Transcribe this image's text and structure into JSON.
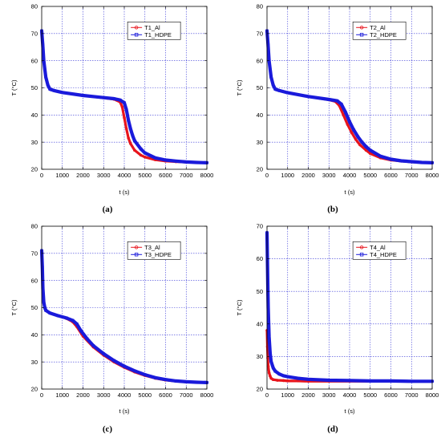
{
  "colors": {
    "al": "#e8141c",
    "hdpe": "#1a1adb",
    "grid": "#3a3ad8",
    "frame": "#000000"
  },
  "chart_data": [
    {
      "type": "line",
      "panel_label": "(a)",
      "xlabel": "t (s)",
      "ylabel": "T (°C)",
      "xlim": [
        0,
        8000
      ],
      "ylim": [
        20,
        80
      ],
      "xticks": [
        0,
        1000,
        2000,
        3000,
        4000,
        5000,
        6000,
        7000,
        8000
      ],
      "yticks": [
        20,
        30,
        40,
        50,
        60,
        70,
        80
      ],
      "grid": true,
      "legend_position": "top-right",
      "series": [
        {
          "name": "T1_Al",
          "color": "#e8141c",
          "marker": "circle",
          "x": [
            0,
            50,
            100,
            200,
            300,
            400,
            600,
            1000,
            2000,
            3000,
            3500,
            3800,
            3900,
            4000,
            4100,
            4200,
            4300,
            4500,
            4800,
            5000,
            5500,
            6000,
            6500,
            7000,
            7500,
            8000
          ],
          "y": [
            71,
            66,
            60,
            54,
            51,
            49.5,
            49,
            48.3,
            47.2,
            46.3,
            45.8,
            44.8,
            43,
            39,
            35,
            31.5,
            29.5,
            27,
            25.2,
            24.5,
            23.5,
            23,
            22.8,
            22.6,
            22.5,
            22.4
          ]
        },
        {
          "name": "T1_HDPE",
          "color": "#1a1adb",
          "marker": "square",
          "x": [
            0,
            50,
            100,
            200,
            300,
            400,
            600,
            1000,
            2000,
            3000,
            3500,
            3800,
            4000,
            4100,
            4200,
            4300,
            4400,
            4500,
            4800,
            5000,
            5500,
            6000,
            6500,
            7000,
            7500,
            8000
          ],
          "y": [
            71,
            66,
            60,
            54,
            51,
            49.5,
            49,
            48.3,
            47.2,
            46.4,
            46,
            45.5,
            44.5,
            42,
            38,
            35,
            32.5,
            30.5,
            27.5,
            26,
            24.2,
            23.4,
            23,
            22.7,
            22.5,
            22.4
          ]
        }
      ]
    },
    {
      "type": "line",
      "panel_label": "(b)",
      "xlabel": "t (s)",
      "ylabel": "T (°C)",
      "xlim": [
        0,
        8000
      ],
      "ylim": [
        20,
        80
      ],
      "xticks": [
        0,
        1000,
        2000,
        3000,
        4000,
        5000,
        6000,
        7000,
        8000
      ],
      "yticks": [
        20,
        30,
        40,
        50,
        60,
        70,
        80
      ],
      "grid": true,
      "legend_position": "top-right",
      "series": [
        {
          "name": "T2_Al",
          "color": "#e8141c",
          "marker": "circle",
          "x": [
            0,
            50,
            100,
            200,
            300,
            400,
            600,
            1000,
            2000,
            3000,
            3300,
            3500,
            3700,
            3900,
            4100,
            4300,
            4500,
            4800,
            5000,
            5500,
            6000,
            6500,
            7000,
            7500,
            8000
          ],
          "y": [
            71,
            66,
            60,
            54,
            51,
            49.5,
            49,
            48.2,
            46.8,
            45.6,
            45,
            43.5,
            40,
            36.5,
            33.5,
            31,
            29,
            27,
            25.8,
            24.2,
            23.4,
            23,
            22.7,
            22.5,
            22.4
          ]
        },
        {
          "name": "T2_HDPE",
          "color": "#1a1adb",
          "marker": "square",
          "x": [
            0,
            50,
            100,
            200,
            300,
            400,
            600,
            1000,
            2000,
            3000,
            3400,
            3600,
            3800,
            4000,
            4200,
            4400,
            4600,
            4800,
            5000,
            5500,
            6000,
            6500,
            7000,
            7500,
            8000
          ],
          "y": [
            71,
            66,
            60,
            54,
            51,
            49.5,
            49,
            48.2,
            46.8,
            45.7,
            45.2,
            44,
            41,
            37.5,
            34.5,
            32,
            30,
            28.3,
            27,
            24.8,
            23.7,
            23.1,
            22.8,
            22.5,
            22.4
          ]
        }
      ]
    },
    {
      "type": "line",
      "panel_label": "(c)",
      "xlabel": "t (s)",
      "ylabel": "T (°C)",
      "xlim": [
        0,
        8000
      ],
      "ylim": [
        20,
        80
      ],
      "xticks": [
        0,
        1000,
        2000,
        3000,
        4000,
        5000,
        6000,
        7000,
        8000
      ],
      "yticks": [
        20,
        30,
        40,
        50,
        60,
        70,
        80
      ],
      "grid": true,
      "legend_position": "top-right",
      "series": [
        {
          "name": "T3_Al",
          "color": "#e8141c",
          "marker": "circle",
          "x": [
            0,
            30,
            60,
            100,
            150,
            200,
            400,
            800,
            1200,
            1500,
            1700,
            2000,
            2500,
            3000,
            3500,
            4000,
            4500,
            5000,
            5500,
            6000,
            6500,
            7000,
            7500,
            8000
          ],
          "y": [
            71,
            65,
            57,
            52,
            50,
            49,
            48,
            47,
            46,
            44.8,
            43,
            39.5,
            35.5,
            32.5,
            30,
            28,
            26.3,
            25,
            24,
            23.3,
            22.9,
            22.6,
            22.5,
            22.4
          ]
        },
        {
          "name": "T3_HDPE",
          "color": "#1a1adb",
          "marker": "square",
          "x": [
            0,
            30,
            60,
            100,
            150,
            200,
            400,
            800,
            1200,
            1500,
            1700,
            1900,
            2200,
            2500,
            3000,
            3500,
            4000,
            4500,
            5000,
            5500,
            6000,
            6500,
            7000,
            7500,
            8000
          ],
          "y": [
            71,
            65,
            57,
            52,
            50,
            49,
            48,
            47,
            46.2,
            45.3,
            44,
            41.5,
            38.5,
            36,
            33,
            30.5,
            28.4,
            26.7,
            25.3,
            24.2,
            23.5,
            23,
            22.7,
            22.5,
            22.4
          ]
        }
      ]
    },
    {
      "type": "line",
      "panel_label": "(d)",
      "xlabel": "t (s)",
      "ylabel": "T (°C)",
      "xlim": [
        0,
        8000
      ],
      "ylim": [
        20,
        70
      ],
      "xticks": [
        0,
        1000,
        2000,
        3000,
        4000,
        5000,
        6000,
        7000,
        8000
      ],
      "yticks": [
        20,
        30,
        40,
        50,
        60,
        70
      ],
      "grid": true,
      "legend_position": "top-right",
      "series": [
        {
          "name": "T4_Al",
          "color": "#e8141c",
          "marker": "circle",
          "x": [
            0,
            20,
            40,
            60,
            100,
            150,
            200,
            300,
            500,
            800,
            1000,
            1500,
            2000,
            3000,
            4000,
            5000,
            6000,
            7000,
            8000
          ],
          "y": [
            38,
            33,
            29.5,
            27,
            25,
            24,
            23.3,
            22.9,
            22.7,
            22.6,
            22.5,
            22.5,
            22.4,
            22.4,
            22.4,
            22.4,
            22.4,
            22.4,
            22.4
          ]
        },
        {
          "name": "T4_HDPE",
          "color": "#1a1adb",
          "marker": "square",
          "x": [
            0,
            20,
            40,
            60,
            80,
            100,
            150,
            200,
            300,
            400,
            600,
            800,
            1000,
            1500,
            2000,
            3000,
            4000,
            5000,
            6000,
            7000,
            8000
          ],
          "y": [
            68,
            60,
            52,
            45,
            40,
            36,
            31,
            28.5,
            26.5,
            25.5,
            24.6,
            24.1,
            23.8,
            23.3,
            23,
            22.7,
            22.6,
            22.5,
            22.5,
            22.4,
            22.4
          ]
        }
      ]
    }
  ]
}
